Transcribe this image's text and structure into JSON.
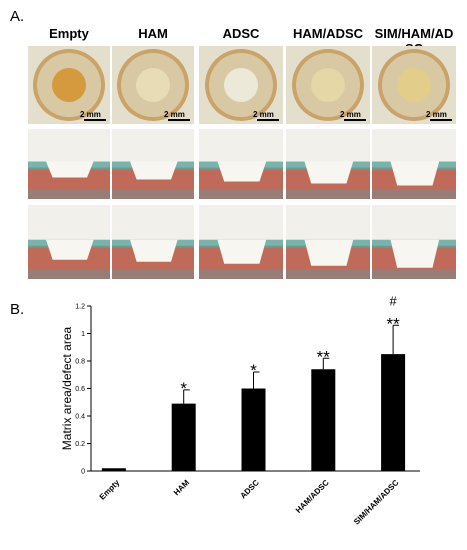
{
  "figure": {
    "panel_a_label": "A.",
    "panel_b_label": "B.",
    "groups": [
      "Empty",
      "HAM",
      "ADSC",
      "HAM/ADSC",
      "SIM/HAM/AD\nSC"
    ],
    "scale_bar_label": "2 mm"
  },
  "chart_data": {
    "type": "bar",
    "categories": [
      "Empty",
      "HAM",
      "ADSC",
      "HAM/ADSC",
      "SIM/HAM/ADSC"
    ],
    "values": [
      0.02,
      0.49,
      0.6,
      0.74,
      0.85
    ],
    "errors": [
      0.005,
      0.1,
      0.12,
      0.08,
      0.21
    ],
    "significance": [
      "",
      "*",
      "*",
      "**",
      "#\n**"
    ],
    "ylabel": "Matrix area/defect area",
    "ylim": [
      0,
      1.2
    ],
    "yticks": [
      0,
      0.2,
      0.4,
      0.6,
      0.8,
      1,
      1.2
    ],
    "bar_color": "#000000"
  }
}
